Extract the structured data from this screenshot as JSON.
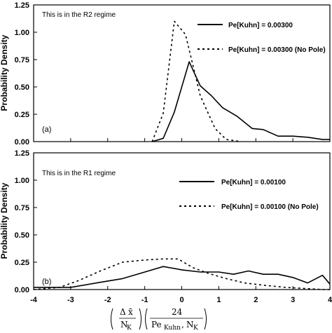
{
  "chart_data": [
    {
      "type": "line",
      "panel_label": "(a)",
      "annotation": "This is in the R2 regime",
      "ylabel": "Probability Density",
      "xlim": [
        -4,
        4
      ],
      "ylim": [
        0,
        1.25
      ],
      "yticks": [
        "0.00",
        "0.25",
        "0.50",
        "0.75",
        "1.00",
        "1.25"
      ],
      "legend_position": "top-right",
      "series": [
        {
          "name": "Pe[Kuhn] = 0.00300",
          "style": "solid",
          "x": [
            -0.8,
            -0.5,
            -0.2,
            0.2,
            0.5,
            0.8,
            1.1,
            1.5,
            1.9,
            2.2,
            2.6,
            3.0,
            3.4,
            3.8,
            4.0
          ],
          "y": [
            0.0,
            0.03,
            0.27,
            0.73,
            0.51,
            0.42,
            0.31,
            0.23,
            0.12,
            0.11,
            0.05,
            0.05,
            0.04,
            0.02,
            0.02
          ]
        },
        {
          "name": "Pe[Kuhn] = 0.00300 (No Pole)",
          "style": "dashed",
          "x": [
            -0.8,
            -0.5,
            -0.2,
            0.1,
            0.5,
            0.9,
            1.2,
            1.6
          ],
          "y": [
            0.0,
            0.26,
            1.1,
            0.98,
            0.42,
            0.12,
            0.02,
            0.0
          ]
        }
      ]
    },
    {
      "type": "line",
      "panel_label": "(b)",
      "annotation": "This is in the R1 regime",
      "ylabel": "Probability Density",
      "xlim": [
        -4,
        4
      ],
      "ylim": [
        0,
        1.25
      ],
      "yticks": [
        "0.00",
        "0.25",
        "0.50",
        "0.75",
        "1.00",
        "1.25"
      ],
      "xticks": [
        "-4",
        "-3",
        "-2",
        "-1",
        "0",
        "1",
        "2",
        "3",
        "4"
      ],
      "legend_position": "top-right",
      "series": [
        {
          "name": "Pe[Kuhn] = 0.00100",
          "style": "solid",
          "x": [
            -4.0,
            -3.0,
            -2.3,
            -1.6,
            -1.1,
            -0.5,
            0.0,
            0.5,
            1.0,
            1.4,
            1.8,
            2.2,
            2.6,
            3.0,
            3.4,
            3.8,
            4.0
          ],
          "y": [
            0.02,
            0.02,
            0.06,
            0.1,
            0.15,
            0.21,
            0.18,
            0.16,
            0.16,
            0.14,
            0.17,
            0.14,
            0.14,
            0.11,
            0.06,
            0.13,
            0.05
          ]
        },
        {
          "name": "Pe[Kuhn] = 0.00100 (No Pole)",
          "style": "dashed",
          "x": [
            -4.0,
            -3.3,
            -2.8,
            -2.2,
            -1.6,
            -1.0,
            -0.5,
            -0.1,
            0.3,
            0.7,
            1.2,
            1.7,
            2.2,
            2.8,
            3.3,
            3.8,
            4.0
          ],
          "y": [
            0.0,
            0.02,
            0.08,
            0.17,
            0.25,
            0.27,
            0.28,
            0.28,
            0.2,
            0.15,
            0.1,
            0.06,
            0.04,
            0.02,
            0.01,
            0.0,
            0.0
          ]
        }
      ]
    }
  ]
}
